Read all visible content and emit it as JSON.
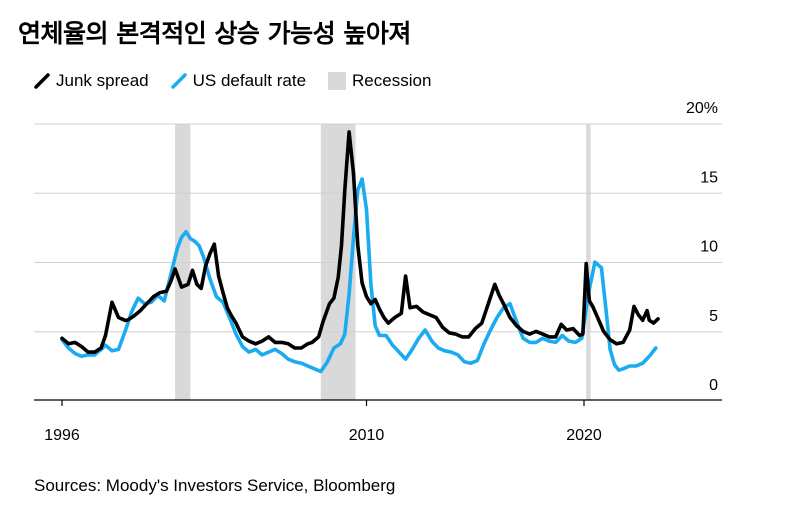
{
  "title": "연체율의 본격적인 상승 가능성 높아져",
  "source": "Sources: Moody's Investors Service, Bloomberg",
  "legend": {
    "junk": "Junk spread",
    "default": "US default rate",
    "recession": "Recession"
  },
  "colors": {
    "junk": "#000000",
    "default": "#1aabf0",
    "recession": "#d9d9d9",
    "grid": "#d0d0d0",
    "axis": "#000000"
  },
  "chart_data": {
    "type": "line",
    "title": "연체율의 본격적인 상승 가능성 높아져",
    "xlim": [
      1995,
      2023.5
    ],
    "ylim": [
      -1,
      20
    ],
    "x_ticks": [
      1996,
      2010,
      2020
    ],
    "x_tick_labels": [
      "1996",
      "2010",
      "2020"
    ],
    "y_ticks": [
      0,
      5,
      10,
      15,
      20
    ],
    "y_tick_labels": [
      "0",
      "5",
      "10",
      "15",
      "20%"
    ],
    "grid": true,
    "legend_position": "top-left",
    "recessions": [
      [
        2001.2,
        2001.9
      ],
      [
        2007.9,
        2009.5
      ],
      [
        2020.1,
        2020.3
      ]
    ],
    "series": [
      {
        "name": "Junk spread",
        "x": [
          1996.0,
          1996.3,
          1996.6,
          1996.9,
          1997.2,
          1997.5,
          1997.8,
          1998.0,
          1998.3,
          1998.6,
          1998.9,
          1999.0,
          1999.3,
          1999.6,
          1999.9,
          2000.2,
          2000.5,
          2000.8,
          2001.0,
          2001.2,
          2001.5,
          2001.8,
          2002.0,
          2002.2,
          2002.4,
          2002.6,
          2002.8,
          2003.0,
          2003.2,
          2003.4,
          2003.6,
          2003.8,
          2004.0,
          2004.3,
          2004.6,
          2004.9,
          2005.2,
          2005.5,
          2005.8,
          2006.1,
          2006.4,
          2006.7,
          2007.0,
          2007.3,
          2007.5,
          2007.8,
          2008.0,
          2008.3,
          2008.5,
          2008.7,
          2008.85,
          2009.0,
          2009.2,
          2009.4,
          2009.6,
          2009.8,
          2010.0,
          2010.2,
          2010.4,
          2010.6,
          2010.8,
          2011.0,
          2011.3,
          2011.6,
          2011.8,
          2012.0,
          2012.3,
          2012.6,
          2012.9,
          2013.2,
          2013.5,
          2013.8,
          2014.1,
          2014.4,
          2014.7,
          2015.0,
          2015.3,
          2015.6,
          2015.9,
          2016.1,
          2016.3,
          2016.6,
          2016.9,
          2017.2,
          2017.5,
          2017.8,
          2018.1,
          2018.4,
          2018.7,
          2018.95,
          2019.2,
          2019.5,
          2019.8,
          2019.95,
          2020.1,
          2020.25,
          2020.4,
          2020.6,
          2020.9,
          2021.2,
          2021.5,
          2021.8,
          2022.1,
          2022.3,
          2022.5,
          2022.7,
          2022.9,
          2023.0,
          2023.2,
          2023.4
        ],
        "values": [
          3.3,
          2.9,
          3.0,
          2.7,
          2.3,
          2.3,
          2.6,
          3.5,
          5.9,
          4.8,
          4.6,
          4.6,
          4.9,
          5.3,
          5.8,
          6.3,
          6.6,
          6.7,
          7.4,
          8.3,
          7.0,
          7.2,
          8.2,
          7.2,
          6.9,
          8.5,
          9.4,
          10.1,
          7.8,
          6.6,
          5.5,
          4.9,
          4.4,
          3.4,
          3.1,
          2.9,
          3.1,
          3.4,
          3.0,
          3.0,
          2.9,
          2.6,
          2.6,
          2.9,
          3.0,
          3.4,
          4.5,
          5.8,
          6.2,
          7.7,
          10.0,
          14.0,
          18.2,
          15.2,
          10.0,
          7.3,
          6.3,
          5.8,
          6.1,
          5.4,
          4.8,
          4.4,
          4.8,
          5.1,
          7.8,
          5.5,
          5.6,
          5.2,
          5.0,
          4.8,
          4.1,
          3.7,
          3.6,
          3.4,
          3.4,
          4.0,
          4.4,
          5.8,
          7.2,
          6.4,
          5.8,
          4.8,
          4.2,
          3.8,
          3.6,
          3.8,
          3.6,
          3.4,
          3.4,
          4.3,
          3.9,
          4.0,
          3.5,
          3.6,
          8.7,
          6.0,
          5.6,
          4.9,
          3.8,
          3.2,
          2.9,
          3.0,
          3.9,
          5.6,
          5.0,
          4.6,
          5.3,
          4.6,
          4.4,
          4.7
        ]
      },
      {
        "name": "US default rate",
        "x": [
          1996.0,
          1996.3,
          1996.6,
          1996.9,
          1997.2,
          1997.5,
          1997.8,
          1998.0,
          1998.3,
          1998.6,
          1998.9,
          1999.2,
          1999.5,
          1999.8,
          2000.1,
          2000.4,
          2000.7,
          2001.0,
          2001.3,
          2001.5,
          2001.7,
          2001.9,
          2002.1,
          2002.3,
          2002.5,
          2002.8,
          2003.1,
          2003.4,
          2003.7,
          2004.0,
          2004.3,
          2004.6,
          2004.9,
          2005.2,
          2005.5,
          2005.8,
          2006.1,
          2006.4,
          2006.7,
          2007.0,
          2007.3,
          2007.6,
          2007.9,
          2008.2,
          2008.5,
          2008.8,
          2009.0,
          2009.2,
          2009.4,
          2009.6,
          2009.8,
          2010.0,
          2010.2,
          2010.4,
          2010.6,
          2010.9,
          2011.2,
          2011.5,
          2011.8,
          2012.1,
          2012.4,
          2012.7,
          2013.0,
          2013.3,
          2013.6,
          2013.9,
          2014.2,
          2014.5,
          2014.8,
          2015.1,
          2015.4,
          2015.7,
          2016.0,
          2016.3,
          2016.6,
          2016.9,
          2017.2,
          2017.5,
          2017.8,
          2018.1,
          2018.4,
          2018.7,
          2019.0,
          2019.3,
          2019.6,
          2019.9,
          2020.2,
          2020.5,
          2020.8,
          2021.0,
          2021.2,
          2021.4,
          2021.6,
          2021.8,
          2022.1,
          2022.4,
          2022.7,
          2023.0,
          2023.3
        ],
        "values": [
          3.2,
          2.6,
          2.2,
          2.0,
          2.1,
          2.1,
          2.5,
          2.8,
          2.4,
          2.5,
          3.8,
          5.2,
          6.2,
          5.8,
          5.9,
          6.4,
          6.0,
          7.9,
          9.8,
          10.6,
          11.0,
          10.5,
          10.3,
          10.0,
          9.2,
          7.6,
          6.3,
          5.9,
          4.8,
          3.6,
          2.7,
          2.3,
          2.5,
          2.1,
          2.3,
          2.5,
          2.2,
          1.8,
          1.6,
          1.5,
          1.3,
          1.1,
          0.9,
          1.6,
          2.6,
          2.9,
          3.6,
          6.5,
          10.6,
          14.0,
          14.8,
          12.6,
          7.2,
          4.2,
          3.5,
          3.5,
          2.8,
          2.3,
          1.8,
          2.5,
          3.3,
          3.9,
          3.1,
          2.6,
          2.4,
          2.3,
          2.1,
          1.6,
          1.5,
          1.7,
          2.9,
          3.9,
          4.8,
          5.5,
          5.8,
          4.5,
          3.3,
          3.0,
          3.0,
          3.3,
          3.1,
          3.0,
          3.5,
          3.1,
          3.0,
          3.3,
          6.5,
          8.8,
          8.4,
          5.5,
          2.5,
          1.4,
          1.0,
          1.1,
          1.3,
          1.3,
          1.5,
          2.0,
          2.6
        ]
      }
    ]
  }
}
